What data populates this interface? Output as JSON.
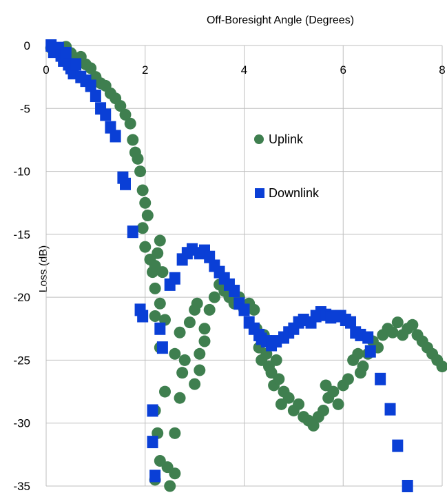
{
  "chart_data": {
    "type": "scatter",
    "title": "",
    "xlabel": "Off-Boresight Angle (Degrees)",
    "ylabel": "Loss (dB)",
    "xlim": [
      0,
      8
    ],
    "ylim": [
      -35,
      0
    ],
    "x_ticks": [
      "0",
      "2",
      "4",
      "6",
      "8"
    ],
    "y_ticks": [
      "0",
      "-5",
      "-10",
      "-15",
      "-20",
      "-25",
      "-30",
      "-35"
    ],
    "grid": true,
    "x_axis_position": "top",
    "legend_position": "center-right",
    "series": [
      {
        "name": "Uplink",
        "marker": "circle",
        "color": "#3f7f4f",
        "points": [
          [
            0.1,
            -0.2
          ],
          [
            0.2,
            -0.5
          ],
          [
            0.3,
            -0.4
          ],
          [
            0.4,
            -0.1
          ],
          [
            0.5,
            -0.6
          ],
          [
            0.6,
            -1.0
          ],
          [
            0.7,
            -0.9
          ],
          [
            0.8,
            -1.5
          ],
          [
            0.9,
            -1.8
          ],
          [
            1.0,
            -2.5
          ],
          [
            1.1,
            -3.0
          ],
          [
            1.2,
            -3.2
          ],
          [
            1.3,
            -3.8
          ],
          [
            1.4,
            -4.2
          ],
          [
            1.5,
            -4.8
          ],
          [
            1.6,
            -5.5
          ],
          [
            1.7,
            -6.2
          ],
          [
            1.75,
            -7.5
          ],
          [
            1.8,
            -8.5
          ],
          [
            1.85,
            -9.0
          ],
          [
            1.9,
            -10.0
          ],
          [
            1.95,
            -11.5
          ],
          [
            2.0,
            -12.5
          ],
          [
            2.05,
            -13.5
          ],
          [
            1.95,
            -14.5
          ],
          [
            2.0,
            -16.0
          ],
          [
            2.1,
            -17.0
          ],
          [
            2.15,
            -18.0
          ],
          [
            2.2,
            -17.5
          ],
          [
            2.25,
            -16.5
          ],
          [
            2.3,
            -15.5
          ],
          [
            2.35,
            -18.0
          ],
          [
            2.2,
            -19.3
          ],
          [
            2.3,
            -20.5
          ],
          [
            2.2,
            -21.5
          ],
          [
            2.4,
            -21.8
          ],
          [
            2.3,
            -24.0
          ],
          [
            2.4,
            -27.5
          ],
          [
            2.2,
            -29.0
          ],
          [
            2.25,
            -30.8
          ],
          [
            2.3,
            -33.0
          ],
          [
            2.2,
            -34.5
          ],
          [
            2.45,
            -33.5
          ],
          [
            2.5,
            -35.0
          ],
          [
            2.6,
            -34.0
          ],
          [
            2.6,
            -30.8
          ],
          [
            2.7,
            -28.0
          ],
          [
            2.75,
            -26.0
          ],
          [
            2.8,
            -25.0
          ],
          [
            2.6,
            -24.5
          ],
          [
            2.7,
            -22.8
          ],
          [
            2.9,
            -22.0
          ],
          [
            3.0,
            -21.0
          ],
          [
            3.05,
            -20.5
          ],
          [
            3.1,
            -24.5
          ],
          [
            3.2,
            -23.5
          ],
          [
            3.0,
            -26.9
          ],
          [
            3.1,
            -25.8
          ],
          [
            3.2,
            -22.5
          ],
          [
            3.3,
            -21.0
          ],
          [
            3.4,
            -20.0
          ],
          [
            3.5,
            -19.0
          ],
          [
            3.6,
            -19.5
          ],
          [
            3.7,
            -20.0
          ],
          [
            3.8,
            -20.5
          ],
          [
            3.9,
            -20.0
          ],
          [
            4.0,
            -21.0
          ],
          [
            4.1,
            -20.5
          ],
          [
            4.2,
            -21.0
          ],
          [
            4.25,
            -22.5
          ],
          [
            4.3,
            -24.0
          ],
          [
            4.35,
            -25.0
          ],
          [
            4.4,
            -23.0
          ],
          [
            4.45,
            -24.5
          ],
          [
            4.5,
            -25.5
          ],
          [
            4.55,
            -26.0
          ],
          [
            4.6,
            -27.0
          ],
          [
            4.65,
            -25.0
          ],
          [
            4.7,
            -26.5
          ],
          [
            4.75,
            -28.5
          ],
          [
            4.8,
            -27.5
          ],
          [
            4.9,
            -28.0
          ],
          [
            5.0,
            -29.0
          ],
          [
            5.1,
            -28.5
          ],
          [
            5.2,
            -29.5
          ],
          [
            5.3,
            -29.8
          ],
          [
            5.4,
            -30.2
          ],
          [
            5.5,
            -29.5
          ],
          [
            5.6,
            -29.0
          ],
          [
            5.65,
            -27.0
          ],
          [
            5.7,
            -28.0
          ],
          [
            5.8,
            -27.5
          ],
          [
            5.9,
            -28.5
          ],
          [
            6.0,
            -27.0
          ],
          [
            6.1,
            -26.5
          ],
          [
            6.2,
            -25.0
          ],
          [
            6.3,
            -24.5
          ],
          [
            6.35,
            -26.0
          ],
          [
            6.4,
            -25.5
          ],
          [
            6.5,
            -24.5
          ],
          [
            6.6,
            -23.5
          ],
          [
            6.7,
            -24.0
          ],
          [
            6.8,
            -23.0
          ],
          [
            6.9,
            -22.5
          ],
          [
            7.0,
            -22.8
          ],
          [
            7.1,
            -22.0
          ],
          [
            7.2,
            -23.0
          ],
          [
            7.3,
            -22.5
          ],
          [
            7.4,
            -22.2
          ],
          [
            7.5,
            -23.0
          ],
          [
            7.6,
            -23.5
          ],
          [
            7.7,
            -24.0
          ],
          [
            7.8,
            -24.5
          ],
          [
            7.9,
            -25.0
          ],
          [
            8.0,
            -25.5
          ]
        ]
      },
      {
        "name": "Downlink",
        "marker": "square",
        "color": "#0a3fd6",
        "points": [
          [
            0.1,
            0.0
          ],
          [
            0.15,
            -0.5
          ],
          [
            0.25,
            -0.2
          ],
          [
            0.3,
            -0.8
          ],
          [
            0.35,
            -1.2
          ],
          [
            0.4,
            -0.6
          ],
          [
            0.45,
            -1.5
          ],
          [
            0.5,
            -1.8
          ],
          [
            0.55,
            -2.2
          ],
          [
            0.6,
            -1.5
          ],
          [
            0.7,
            -2.5
          ],
          [
            0.8,
            -2.8
          ],
          [
            0.9,
            -3.2
          ],
          [
            1.0,
            -4.0
          ],
          [
            1.1,
            -5.0
          ],
          [
            1.2,
            -5.5
          ],
          [
            1.3,
            -6.5
          ],
          [
            1.4,
            -7.2
          ],
          [
            1.55,
            -10.5
          ],
          [
            1.6,
            -11.0
          ],
          [
            1.75,
            -14.8
          ],
          [
            1.9,
            -21.0
          ],
          [
            1.95,
            -21.5
          ],
          [
            2.15,
            -29.0
          ],
          [
            2.15,
            -31.5
          ],
          [
            2.2,
            -34.2
          ],
          [
            2.3,
            -22.5
          ],
          [
            2.35,
            -24.0
          ],
          [
            2.5,
            -19.0
          ],
          [
            2.6,
            -18.5
          ],
          [
            2.75,
            -17.0
          ],
          [
            2.85,
            -16.5
          ],
          [
            2.95,
            -16.2
          ],
          [
            3.1,
            -16.5
          ],
          [
            3.2,
            -16.3
          ],
          [
            3.3,
            -16.8
          ],
          [
            3.4,
            -17.5
          ],
          [
            3.5,
            -18.0
          ],
          [
            3.6,
            -18.5
          ],
          [
            3.7,
            -19.0
          ],
          [
            3.8,
            -19.5
          ],
          [
            3.9,
            -20.5
          ],
          [
            4.0,
            -21.0
          ],
          [
            4.1,
            -22.0
          ],
          [
            4.2,
            -22.5
          ],
          [
            4.3,
            -23.0
          ],
          [
            4.35,
            -23.3
          ],
          [
            4.45,
            -23.5
          ],
          [
            4.55,
            -23.8
          ],
          [
            4.65,
            -23.5
          ],
          [
            4.8,
            -23.2
          ],
          [
            4.9,
            -22.8
          ],
          [
            5.0,
            -22.5
          ],
          [
            5.1,
            -22.0
          ],
          [
            5.2,
            -21.8
          ],
          [
            5.35,
            -22.0
          ],
          [
            5.45,
            -21.5
          ],
          [
            5.55,
            -21.2
          ],
          [
            5.65,
            -21.4
          ],
          [
            5.75,
            -21.6
          ],
          [
            5.85,
            -21.5
          ],
          [
            5.95,
            -21.5
          ],
          [
            6.05,
            -21.8
          ],
          [
            6.15,
            -22.0
          ],
          [
            6.25,
            -22.8
          ],
          [
            6.35,
            -23.0
          ],
          [
            6.5,
            -23.2
          ],
          [
            6.55,
            -24.3
          ],
          [
            6.75,
            -26.5
          ],
          [
            6.95,
            -28.9
          ],
          [
            7.1,
            -31.8
          ],
          [
            7.3,
            -35.0
          ]
        ]
      }
    ]
  }
}
